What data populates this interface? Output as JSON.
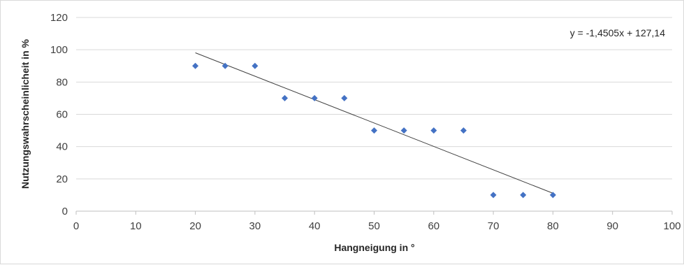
{
  "chart_data": {
    "type": "scatter",
    "xlabel": "Hangneigung in °",
    "ylabel": "Nutzungswahrscheinlicheit in %",
    "xlim": [
      0,
      100
    ],
    "ylim": [
      0,
      120
    ],
    "xticks": [
      0,
      10,
      20,
      30,
      40,
      50,
      60,
      70,
      80,
      90,
      100
    ],
    "yticks": [
      0,
      20,
      40,
      60,
      80,
      100,
      120
    ],
    "grid": "horizontal",
    "marker": "diamond",
    "marker_color": "#4472c4",
    "series": [
      {
        "points": [
          {
            "x": 20,
            "y": 90
          },
          {
            "x": 25,
            "y": 90
          },
          {
            "x": 30,
            "y": 90
          },
          {
            "x": 35,
            "y": 70
          },
          {
            "x": 40,
            "y": 70
          },
          {
            "x": 45,
            "y": 70
          },
          {
            "x": 50,
            "y": 50
          },
          {
            "x": 55,
            "y": 50
          },
          {
            "x": 60,
            "y": 50
          },
          {
            "x": 65,
            "y": 50
          },
          {
            "x": 70,
            "y": 10
          },
          {
            "x": 75,
            "y": 10
          },
          {
            "x": 80,
            "y": 10
          }
        ]
      }
    ],
    "trendline": {
      "type": "linear",
      "slope": -1.4505,
      "intercept": 127.14,
      "x_range": [
        20,
        80
      ],
      "color": "#404040",
      "equation_label": "y = -1,4505x + 127,14"
    }
  }
}
